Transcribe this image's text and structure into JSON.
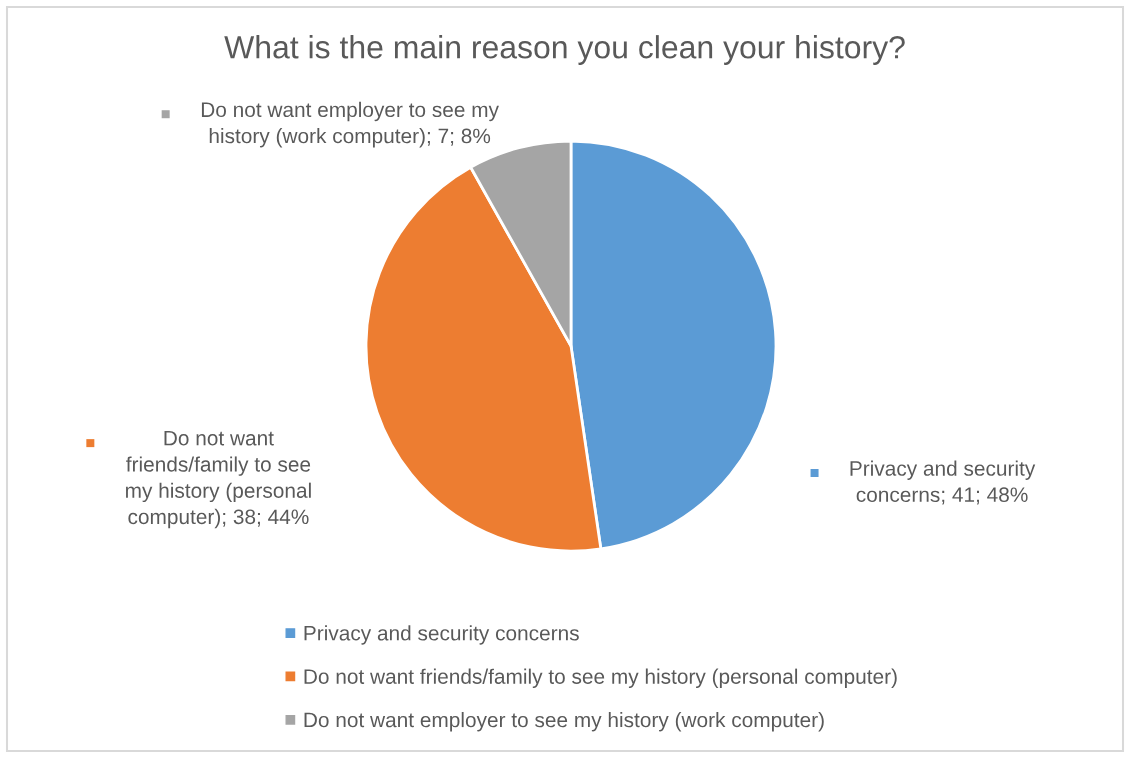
{
  "chart_data": {
    "type": "pie",
    "title": "What is the main reason you clean your history?",
    "categories": [
      "Privacy and security concerns",
      "Do not want friends/family to see my history (personal computer)",
      "Do not want employer to see my history (work computer)"
    ],
    "values": [
      41,
      38,
      7
    ],
    "colors": [
      "#5b9bd5",
      "#ed7d31",
      "#a5a5a5"
    ],
    "value_labels": [
      "Privacy and security\nconcerns; 41; 48%",
      "Do not want\nfriends/family to see\nmy history (personal\ncomputer); 38; 44%",
      "Do not want employer to see my\nhistory (work computer); 7; 8%"
    ],
    "legend": "bottom"
  }
}
